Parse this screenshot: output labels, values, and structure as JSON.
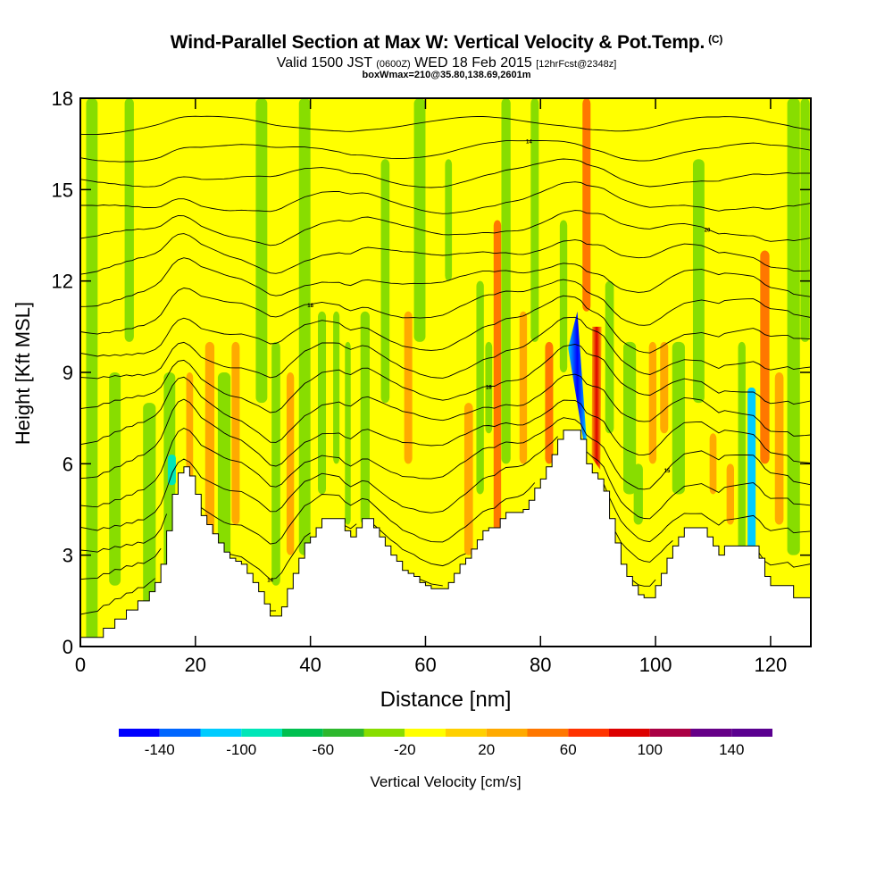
{
  "title": "Wind-Parallel Section at Max W: Vertical Velocity & Pot.Temp.",
  "title_mark": "(C)",
  "subtitle_pre": "Valid 1500 JST",
  "subtitle_small": "(0600Z)",
  "subtitle_post": "WED 18 Feb 2015",
  "subtitle_fcst": "[12hrFcst@2348z]",
  "subtitle2": "boxWmax=210@35.80,138.69,2601m",
  "chart_data": {
    "type": "heatmap",
    "xlabel": "Distance [nm]",
    "ylabel": "Height [Kft MSL]",
    "xlim": [
      0,
      127
    ],
    "ylim": [
      0,
      18
    ],
    "xticks": [
      0,
      20,
      40,
      60,
      80,
      100,
      120
    ],
    "yticks": [
      0,
      3,
      6,
      9,
      12,
      15,
      18
    ],
    "colorbar": {
      "label": "Vertical Velocity [cm/s]",
      "ticks": [
        -140,
        -100,
        -60,
        -20,
        20,
        60,
        100,
        140
      ],
      "bounds": [
        -160,
        160
      ],
      "colors": [
        "#0000ff",
        "#0066ff",
        "#00ccff",
        "#00e6b8",
        "#00c050",
        "#2db82d",
        "#88dd00",
        "#ffff00",
        "#ffd000",
        "#ffaa00",
        "#ff7700",
        "#ff3300",
        "#dd0000",
        "#aa0044",
        "#660088",
        "#5a0090"
      ]
    },
    "terrain": [
      [
        0,
        0.3
      ],
      [
        3,
        0.3
      ],
      [
        4,
        0.6
      ],
      [
        6,
        0.9
      ],
      [
        8,
        1.2
      ],
      [
        10,
        1.5
      ],
      [
        12,
        1.8
      ],
      [
        13,
        2.1
      ],
      [
        14,
        2.7
      ],
      [
        15,
        3.8
      ],
      [
        16,
        5.0
      ],
      [
        17,
        5.7
      ],
      [
        18,
        5.9
      ],
      [
        19,
        5.6
      ],
      [
        20,
        5.0
      ],
      [
        21,
        4.3
      ],
      [
        22,
        4.0
      ],
      [
        23,
        3.7
      ],
      [
        24,
        3.4
      ],
      [
        25,
        3.1
      ],
      [
        26,
        2.9
      ],
      [
        27,
        2.8
      ],
      [
        28,
        2.7
      ],
      [
        29,
        2.4
      ],
      [
        30,
        2.1
      ],
      [
        31,
        1.8
      ],
      [
        32,
        1.4
      ],
      [
        33,
        1.0
      ],
      [
        34,
        1.0
      ],
      [
        35,
        1.3
      ],
      [
        36,
        1.9
      ],
      [
        37,
        2.4
      ],
      [
        38,
        2.9
      ],
      [
        39,
        3.4
      ],
      [
        40,
        3.6
      ],
      [
        41,
        3.9
      ],
      [
        42,
        4.2
      ],
      [
        45,
        4.2
      ],
      [
        46,
        3.8
      ],
      [
        47,
        3.6
      ],
      [
        48,
        3.9
      ],
      [
        49,
        4.2
      ],
      [
        50,
        4.2
      ],
      [
        51,
        3.9
      ],
      [
        52,
        3.6
      ],
      [
        53,
        3.3
      ],
      [
        54,
        3.0
      ],
      [
        55,
        2.8
      ],
      [
        56,
        2.5
      ],
      [
        57,
        2.4
      ],
      [
        58,
        2.3
      ],
      [
        59,
        2.1
      ],
      [
        60,
        2.0
      ],
      [
        61,
        1.9
      ],
      [
        63,
        1.9
      ],
      [
        64,
        2.1
      ],
      [
        65,
        2.4
      ],
      [
        66,
        2.7
      ],
      [
        67,
        2.9
      ],
      [
        68,
        3.2
      ],
      [
        69,
        3.5
      ],
      [
        70,
        3.8
      ],
      [
        71,
        3.9
      ],
      [
        73,
        4.2
      ],
      [
        74,
        4.4
      ],
      [
        77,
        4.5
      ],
      [
        78,
        4.8
      ],
      [
        79,
        5.2
      ],
      [
        80,
        5.5
      ],
      [
        81,
        5.9
      ],
      [
        82,
        6.3
      ],
      [
        83,
        6.8
      ],
      [
        84,
        7.1
      ],
      [
        86,
        7.1
      ],
      [
        87,
        6.8
      ],
      [
        88,
        6.0
      ],
      [
        89,
        5.7
      ],
      [
        90,
        5.5
      ],
      [
        91,
        5.1
      ],
      [
        92,
        4.2
      ],
      [
        93,
        3.4
      ],
      [
        94,
        2.7
      ],
      [
        95,
        2.3
      ],
      [
        96,
        2.0
      ],
      [
        97,
        1.7
      ],
      [
        98,
        1.6
      ],
      [
        99,
        1.6
      ],
      [
        100,
        2.0
      ],
      [
        101,
        2.4
      ],
      [
        102,
        2.9
      ],
      [
        103,
        3.3
      ],
      [
        104,
        3.6
      ],
      [
        105,
        3.9
      ],
      [
        106,
        3.9
      ],
      [
        108,
        3.9
      ],
      [
        109,
        3.6
      ],
      [
        110,
        3.3
      ],
      [
        111,
        3.0
      ],
      [
        112,
        3.3
      ],
      [
        113,
        3.3
      ],
      [
        117,
        3.3
      ],
      [
        118,
        2.9
      ],
      [
        119,
        2.3
      ],
      [
        120,
        2.0
      ],
      [
        123,
        2.0
      ],
      [
        124,
        1.6
      ],
      [
        127,
        1.6
      ]
    ],
    "contour_labels": [
      "14",
      "15",
      "16",
      "18",
      "20"
    ]
  }
}
